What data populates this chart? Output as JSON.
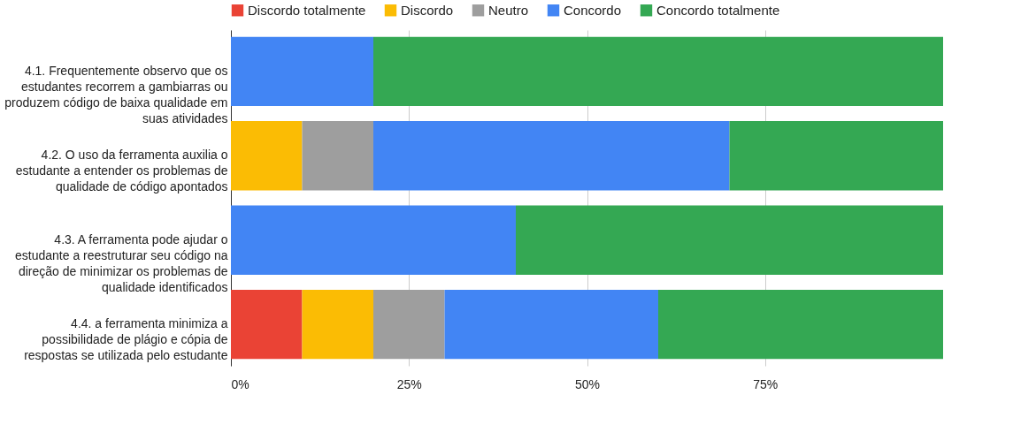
{
  "chart_data": {
    "type": "bar",
    "orientation": "horizontal",
    "stacked": true,
    "categories": [
      "4.1. Frequentemente observo que os estudantes recorrem a gambiarras ou produzem código de baixa qualidade em suas atividades",
      "4.2. O uso da ferramenta auxilia o estudante a entender os problemas de qualidade de código apontados",
      "4.3. A ferramenta pode ajudar o estudante a reestruturar seu código na direção de minimizar os problemas de qualidade identificados",
      "4.4. a ferramenta minimiza a possibilidade de plágio e cópia de respostas se utilizada pelo estudante"
    ],
    "series": [
      {
        "name": "Discordo totalmente",
        "color": "#ea4335",
        "values": [
          0,
          0,
          0,
          10
        ]
      },
      {
        "name": "Discordo",
        "color": "#fbbc04",
        "values": [
          0,
          10,
          0,
          10
        ]
      },
      {
        "name": "Neutro",
        "color": "#9e9e9e",
        "values": [
          0,
          10,
          0,
          10
        ]
      },
      {
        "name": "Concordo",
        "color": "#4285f4",
        "values": [
          20,
          50,
          40,
          30
        ]
      },
      {
        "name": "Concordo totalmente",
        "color": "#34a853",
        "values": [
          80,
          30,
          60,
          40
        ]
      }
    ],
    "xlim": [
      0,
      100
    ],
    "xticks": [
      {
        "value": 0,
        "label": "0%"
      },
      {
        "value": 25,
        "label": "25%"
      },
      {
        "value": 50,
        "label": "50%"
      },
      {
        "value": 75,
        "label": "75%"
      }
    ],
    "grid": "x",
    "legend": "top"
  }
}
